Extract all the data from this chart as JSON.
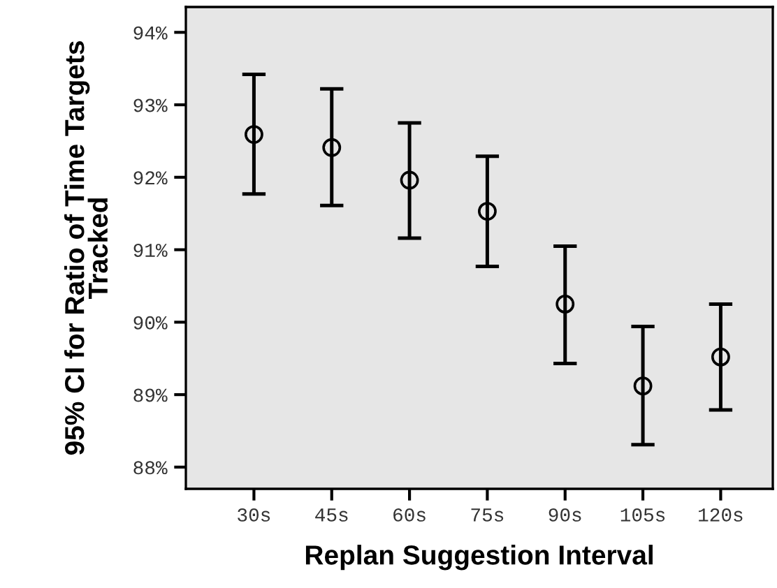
{
  "chart_data": {
    "type": "scatter",
    "xlabel": "Replan Suggestion Interval",
    "ylabel": "95% CI for Ratio of Time Targets\nTracked",
    "categories": [
      "30s",
      "45s",
      "60s",
      "75s",
      "90s",
      "105s",
      "120s"
    ],
    "series": [
      {
        "color": "#000000",
        "values": [
          92.59,
          92.41,
          91.96,
          91.53,
          90.25,
          89.12,
          89.52
        ],
        "errors": [
          [
            91.77,
            93.42
          ],
          [
            91.61,
            93.22
          ],
          [
            91.16,
            92.75
          ],
          [
            90.77,
            92.29
          ],
          [
            89.43,
            91.05
          ],
          [
            88.31,
            89.94
          ],
          [
            88.79,
            90.25
          ]
        ]
      }
    ],
    "marker": "circle",
    "ylim": [
      87.7,
      94.35
    ],
    "yticks": [
      {
        "value": 88,
        "label": "88%"
      },
      {
        "value": 89,
        "label": "89%"
      },
      {
        "value": 90,
        "label": "90%"
      },
      {
        "value": 91,
        "label": "91%"
      },
      {
        "value": 92,
        "label": "92%"
      },
      {
        "value": 93,
        "label": "93%"
      },
      {
        "value": 94,
        "label": "94%"
      }
    ],
    "grid": false
  }
}
